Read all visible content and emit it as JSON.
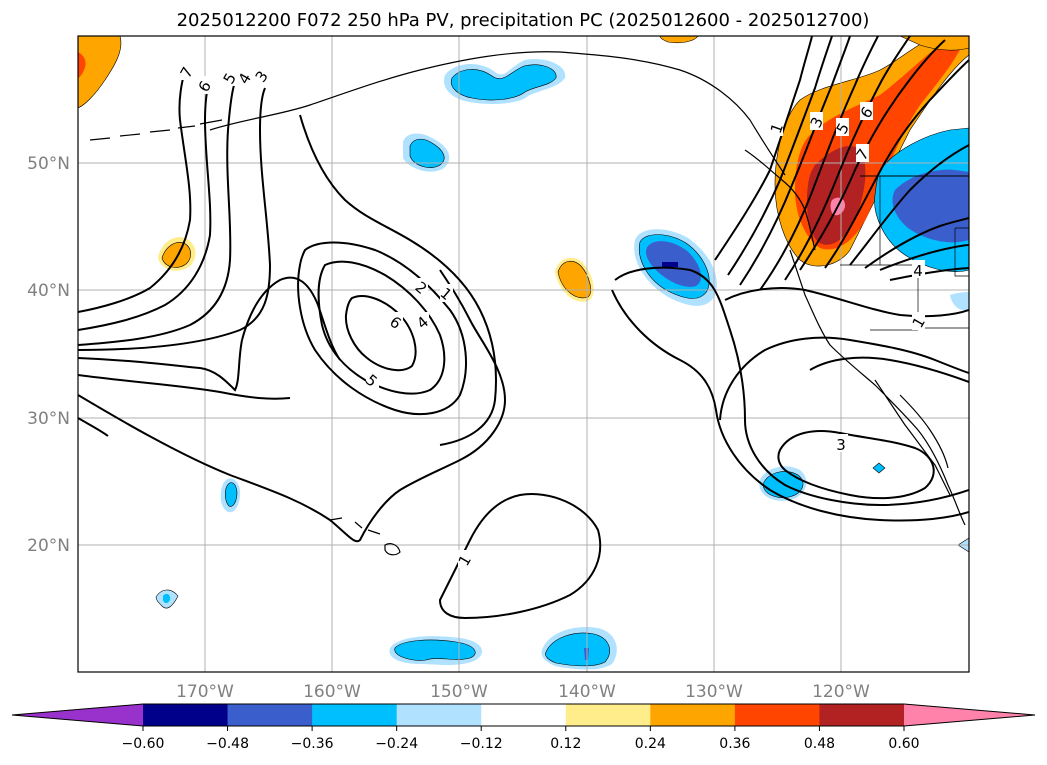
{
  "title": "2025012200 F072 250 hPa PV, precipitation PC (2025012600 - 2025012700)",
  "map": {
    "lat_labels": [
      "50°N",
      "40°N",
      "30°N",
      "20°N"
    ],
    "lon_labels": [
      "170°W",
      "160°W",
      "150°W",
      "140°W",
      "130°W",
      "120°W"
    ],
    "lat_range": [
      10,
      60
    ],
    "lon_range": [
      -180,
      -110
    ],
    "projection": "plate-carree",
    "grid": true
  },
  "contour_labels": [
    {
      "id": "c1",
      "text": "7"
    },
    {
      "id": "c2",
      "text": "6"
    },
    {
      "id": "c3",
      "text": "5"
    },
    {
      "id": "c4",
      "text": "4"
    },
    {
      "id": "c5",
      "text": "3"
    },
    {
      "id": "c6",
      "text": "2"
    },
    {
      "id": "c7",
      "text": "1"
    },
    {
      "id": "c8",
      "text": "6"
    },
    {
      "id": "c9",
      "text": "4"
    },
    {
      "id": "c10",
      "text": "5"
    },
    {
      "id": "c11",
      "text": "1"
    },
    {
      "id": "c12",
      "text": "3"
    },
    {
      "id": "c13",
      "text": "1"
    },
    {
      "id": "c14",
      "text": "3"
    },
    {
      "id": "c15",
      "text": "5"
    },
    {
      "id": "c16",
      "text": "6"
    },
    {
      "id": "c17",
      "text": "7"
    },
    {
      "id": "c18",
      "text": "4"
    },
    {
      "id": "c19",
      "text": "1"
    }
  ],
  "colorbar": {
    "ticks": [
      "−0.60",
      "−0.48",
      "−0.36",
      "−0.24",
      "−0.12",
      "0.12",
      "0.24",
      "0.36",
      "0.48",
      "0.60"
    ],
    "colors": [
      "#9932cc",
      "#00008b",
      "#3a5fcd",
      "#00bfff",
      "#b0e2ff",
      "#ffffff",
      "#ffec8b",
      "#ffa500",
      "#ff4500",
      "#b22222",
      "#ff82ab"
    ],
    "extend": "both"
  },
  "colors": {
    "coast": "#000000",
    "grid": "#b0b0b0",
    "contour": "#000000"
  }
}
